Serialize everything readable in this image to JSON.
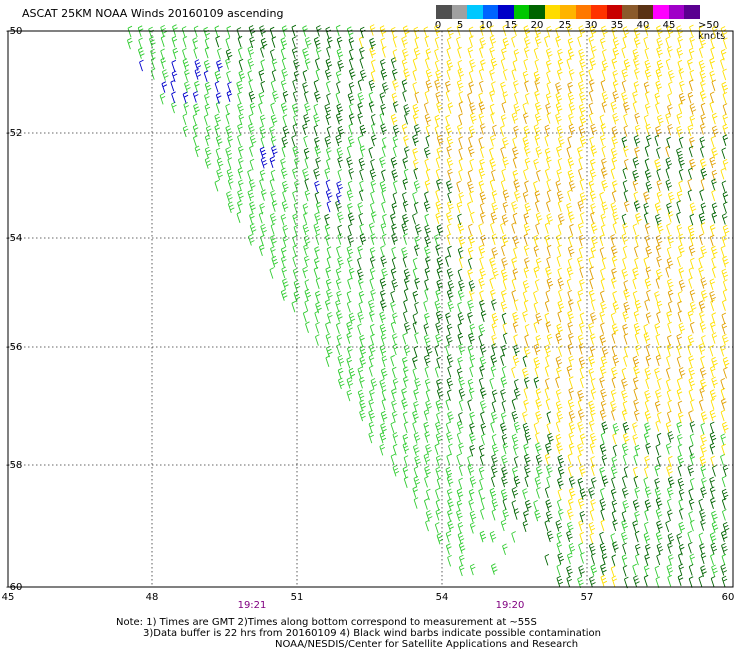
{
  "title": "ASCAT 25KM NOAA Winds 20160109 ascending",
  "colorbar": {
    "colors": [
      "#505050",
      "#a0a0a0",
      "#00c8ff",
      "#0064ff",
      "#0000c8",
      "#00c800",
      "#006400",
      "#ffdc00",
      "#ffb400",
      "#ff7800",
      "#ff3200",
      "#c80000",
      "#8b5a2b",
      "#5a3214",
      "#ff00ff",
      "#a000c8",
      "#5a0090"
    ],
    "labels": [
      "0",
      "5",
      "10",
      "15",
      "20",
      "25",
      "30",
      "35",
      "40",
      "45",
      ">50 knots"
    ]
  },
  "map": {
    "lat_labels": [
      "-50",
      "-52",
      "-54",
      "-56",
      "-58",
      "-60"
    ],
    "lon_labels": [
      "45",
      "48",
      "51",
      "54",
      "57",
      "60"
    ],
    "pass_times": [
      "19:21",
      "19:20"
    ],
    "barb_colors": {
      "light_green": "#33cc33",
      "dark_green": "#006400",
      "yellow": "#ffe000",
      "orange": "#e0a000",
      "blue": "#0000cc"
    }
  },
  "notes": {
    "line1": "Note: 1) Times are GMT 2)Times along bottom correspond to measurement at ~55S",
    "line2": "3)Data buffer is 22 hrs from 20160109 4) Black wind barbs indicate possible contamination",
    "line3": "NOAA/NESDIS/Center for Satellite Applications and Research"
  }
}
